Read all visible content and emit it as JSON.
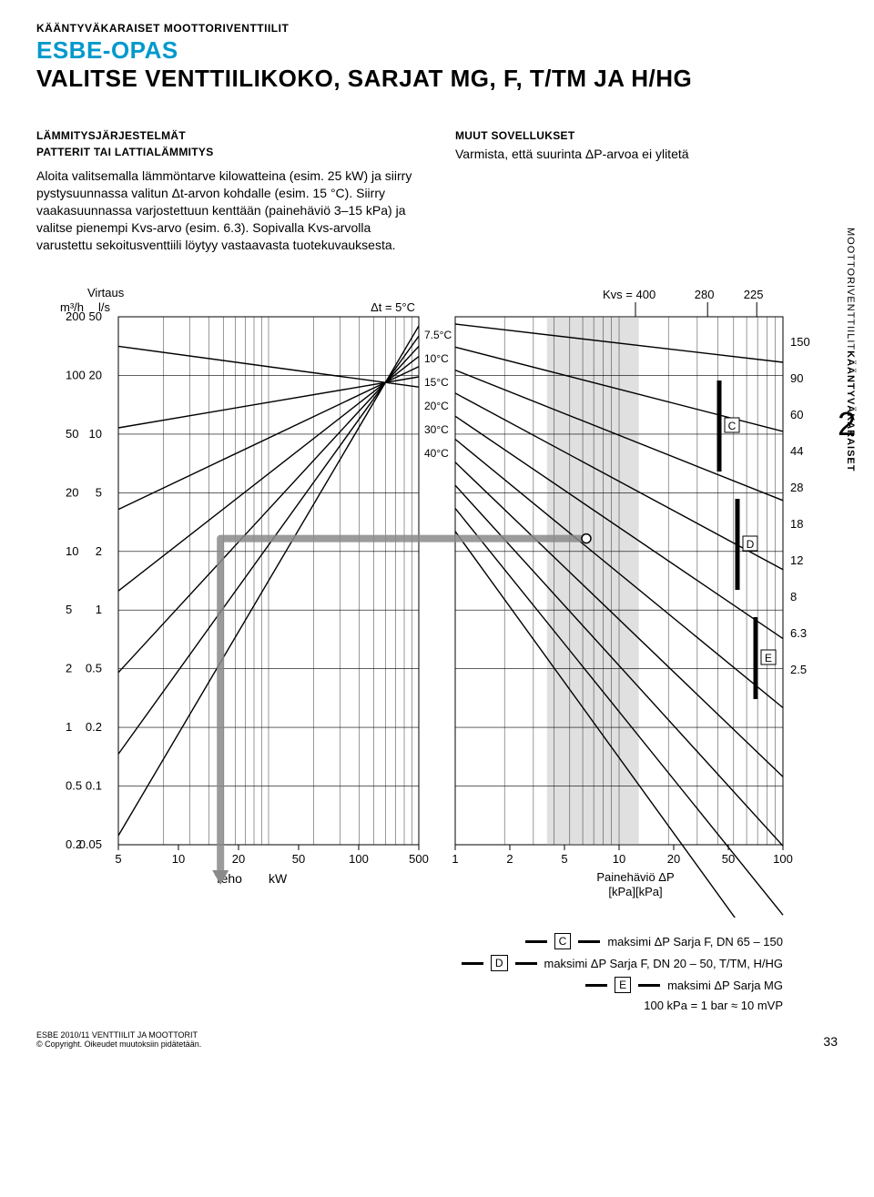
{
  "header": {
    "kicker": "KÄÄNTYVÄKARAISET MOOTTORIVENTTIILIT",
    "brand": "ESBE-OPAS",
    "title": "VALITSE VENTTIILIKOKO, SARJAT MG, F, T/TM JA H/HG"
  },
  "left": {
    "heading": "LÄMMITYSJÄRJESTELMÄT",
    "subheading": "PATTERIT TAI LATTIALÄMMITYS",
    "body": "Aloita valitsemalla lämmöntarve kilowatteina (esim. 25 kW) ja siirry pystysuunnassa valitun Δt-arvon kohdalle (esim. 15 °C). Siirry vaakasuunnassa varjostettuun kenttään (painehäviö 3–15 kPa) ja valitse pienempi Kvs-arvo (esim. 6.3). Sopivalla Kvs-arvolla varustettu sekoitusventtiili löytyy vastaavasta tuotekuvauksesta."
  },
  "right": {
    "heading": "MUUT SOVELLUKSET",
    "body": "Varmista, että suurinta ΔP-arvoa ei ylitetä"
  },
  "sideTab": {
    "line1": "MOOTTORIVENTTIILIT",
    "line2": "KÄÄNTYVÄKARAISET"
  },
  "bigIndex": "2",
  "chart": {
    "flow_title": "Virtaus",
    "flow_unit_m3h": "m³/h",
    "flow_unit_ls": "l/s",
    "m3h_ticks": [
      "200",
      "100",
      "50",
      "20",
      "10",
      "5",
      "2",
      "1",
      "0.5",
      "0.2"
    ],
    "ls_ticks": [
      "50",
      "20",
      "10",
      "5",
      "2",
      "1",
      "0.5",
      "0.2",
      "0.1",
      "0.05"
    ],
    "dt_label": "Δt = 5°C",
    "dt_lines": [
      "7.5°C",
      "10°C",
      "15°C",
      "20°C",
      "30°C",
      "40°C"
    ],
    "kW_ticks": [
      "5",
      "10",
      "20",
      "50",
      "100",
      "500"
    ],
    "kW_label": "Teho",
    "kW_unit": "kW",
    "dp_ticks": [
      "1",
      "2",
      "5",
      "10",
      "20",
      "50",
      "100"
    ],
    "dp_label": "Painehäviö ΔP",
    "dp_unit": "[kPa][kPa]",
    "kvs_top_label": "Kvs = 400",
    "kvs_top_vals": [
      "280",
      "225"
    ],
    "kvs_right": [
      "150",
      "90",
      "60",
      "44",
      "28",
      "18",
      "12",
      "8",
      "6.3",
      "2.5"
    ],
    "zone_labels": [
      "C",
      "D",
      "E"
    ],
    "shaded_color": "#c7c7c7",
    "grid_color": "#000000",
    "line_color": "#000000"
  },
  "legend": {
    "c": "maksimi ΔP  Sarja F, DN 65 – 150",
    "d": "maksimi ΔP  Sarja F, DN 20 – 50, T/TM, H/HG",
    "e": "maksimi ΔP  Sarja MG",
    "note": "100 kPa = 1 bar ≈ 10 mVP"
  },
  "footer": {
    "left1": "ESBE 2010/11 VENTTIILIT JA MOOTTORIT",
    "left2": "© Copyright. Oikeudet muutoksiin pidätetään.",
    "page": "33"
  }
}
